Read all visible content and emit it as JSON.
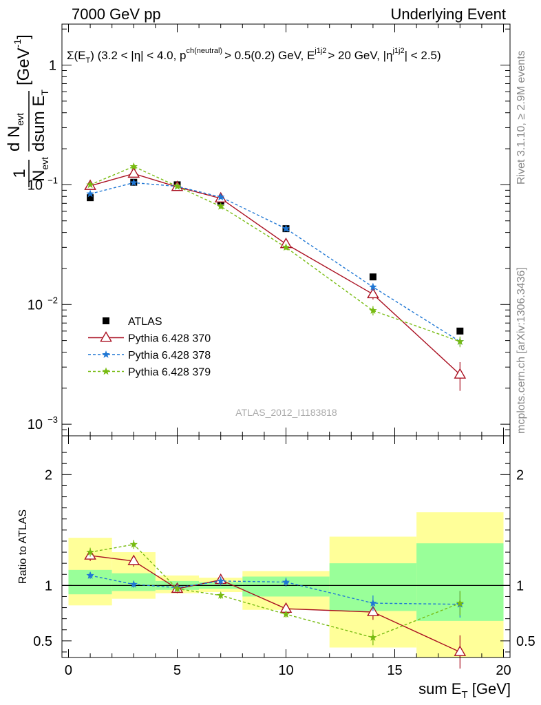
{
  "header": {
    "left": "7000 GeV pp",
    "right": "Underlying Event"
  },
  "side_labels": {
    "rivet": "Rivet 3.1.10, ≥ 2.9M events",
    "mcplots": "mcplots.cern.ch [arXiv:1306.3436]"
  },
  "chart_data": [
    {
      "type": "scatter",
      "panel": "main",
      "title": "Σ(E_T) (3.2 < |η| < 4.0, p^ch(neutral) > 0.5(0.2) GeV, E_T^j1j2 > 20 GeV, |η^j1j2| < 2.5)",
      "title_parts": {
        "sigma": "Σ(E",
        "sub_t": "T",
        "cut1": ") (3.2 < |η| < 4.0, p",
        "sup_ch": "ch(neutral)",
        "cut2": "> 0.5(0.2) GeV, E",
        "sup_j": "j1j2",
        "cut3": "> 20 GeV, |η",
        "sup_j2": "j1j2",
        "cut4": "| < 2.5)"
      },
      "ylabel": "1/N_evt dN_evt/dsum E_T [GeV^-1]",
      "ylabel_parts": {
        "one": "1",
        "n": "N",
        "evt": "evt",
        "d": "d N",
        "dsum": "dsum E",
        "t": "T",
        "unit": "[GeV",
        "exp": "-1",
        "close": "]"
      },
      "yscale": "log",
      "ylim": [
        0.0008,
        2.2
      ],
      "y_ticks": [
        {
          "value": 1,
          "label": "1"
        },
        {
          "value": 0.1,
          "label": "10^-1",
          "base": "10",
          "exp": "−1"
        },
        {
          "value": 0.01,
          "label": "10^-2",
          "base": "10",
          "exp": "−2"
        },
        {
          "value": 0.001,
          "label": "10^-3",
          "base": "10",
          "exp": "−3"
        }
      ],
      "xlim": [
        -0.3,
        20.3
      ],
      "watermark": "ATLAS_2012_I1183818",
      "legend_position": "bottom-left",
      "series": [
        {
          "name": "ATLAS",
          "style": "square",
          "color": "#000000",
          "x": [
            1,
            3,
            5,
            7,
            10,
            14,
            18
          ],
          "y": [
            0.078,
            0.105,
            0.1,
            0.073,
            0.043,
            0.017,
            0.006
          ]
        },
        {
          "name": "Pythia 6.428 370",
          "style": "triangle-line",
          "color": "#aa1122",
          "x": [
            1,
            3,
            5,
            7,
            10,
            14,
            18
          ],
          "y": [
            0.098,
            0.124,
            0.096,
            0.077,
            0.032,
            0.0122,
            0.0026
          ],
          "err": [
            0.003,
            0.004,
            0.003,
            0.003,
            0.0015,
            0.0012,
            0.0007
          ]
        },
        {
          "name": "Pythia 6.428 378",
          "style": "star-dash",
          "color": "#1f77d4",
          "x": [
            1,
            3,
            5,
            7,
            10,
            14,
            18
          ],
          "y": [
            0.084,
            0.104,
            0.097,
            0.079,
            0.043,
            0.014,
            0.0049
          ],
          "err": [
            0.002,
            0.003,
            0.003,
            0.003,
            0.002,
            0.001,
            0.0004
          ]
        },
        {
          "name": "Pythia 6.428 379",
          "style": "star-dash",
          "color": "#77bb11",
          "x": [
            1,
            3,
            5,
            7,
            10,
            14,
            18
          ],
          "y": [
            0.1,
            0.142,
            0.097,
            0.066,
            0.03,
            0.0089,
            0.0049
          ],
          "err": [
            0.003,
            0.005,
            0.003,
            0.003,
            0.0015,
            0.0008,
            0.0005
          ]
        }
      ]
    },
    {
      "type": "scatter",
      "panel": "ratio",
      "ylabel": "Ratio to ATLAS",
      "xlabel": "sum E_T [GeV]",
      "xlabel_parts": {
        "main": "sum E",
        "sub": "T",
        "unit": " [GeV]"
      },
      "ylim": [
        0.35,
        2.35
      ],
      "y_ticks": [
        0.5,
        1,
        2
      ],
      "xlim": [
        -0.3,
        20.3
      ],
      "x_ticks": [
        0,
        5,
        10,
        15,
        20
      ],
      "bands": [
        {
          "x0": 0,
          "x1": 2,
          "yellow": [
            0.82,
            1.43
          ],
          "green": [
            0.92,
            1.14
          ]
        },
        {
          "x0": 2,
          "x1": 4,
          "yellow": [
            0.88,
            1.3
          ],
          "green": [
            0.95,
            1.11
          ]
        },
        {
          "x0": 4,
          "x1": 6,
          "yellow": [
            0.93,
            1.09
          ],
          "green": [
            0.96,
            1.04
          ]
        },
        {
          "x0": 6,
          "x1": 8,
          "yellow": [
            0.94,
            1.07
          ],
          "green": [
            0.97,
            1.03
          ]
        },
        {
          "x0": 8,
          "x1": 12,
          "yellow": [
            0.78,
            1.13
          ],
          "green": [
            0.9,
            1.08
          ]
        },
        {
          "x0": 12,
          "x1": 16,
          "yellow": [
            0.44,
            1.44
          ],
          "green": [
            0.77,
            1.2
          ]
        },
        {
          "x0": 16,
          "x1": 20,
          "yellow": [
            0.35,
            1.66
          ],
          "green": [
            0.68,
            1.38
          ]
        }
      ],
      "series": [
        {
          "name": "Pythia 6.428 370",
          "color": "#aa1122",
          "x": [
            1,
            3,
            5,
            7,
            10,
            14,
            18
          ],
          "y": [
            1.27,
            1.22,
            0.97,
            1.05,
            0.79,
            0.76,
            0.4
          ],
          "err": [
            0.05,
            0.05,
            0.04,
            0.05,
            0.05,
            0.07,
            0.15
          ]
        },
        {
          "name": "Pythia 6.428 378",
          "color": "#1f77d4",
          "x": [
            1,
            3,
            5,
            7,
            10,
            14,
            18
          ],
          "y": [
            1.09,
            1.01,
            0.98,
            1.04,
            1.03,
            0.84,
            0.83
          ],
          "err": [
            0.03,
            0.03,
            0.03,
            0.04,
            0.04,
            0.07,
            0.12
          ]
        },
        {
          "name": "Pythia 6.428 379",
          "color": "#77bb11",
          "x": [
            1,
            3,
            5,
            7,
            10,
            14,
            18
          ],
          "y": [
            1.3,
            1.37,
            0.97,
            0.91,
            0.74,
            0.53,
            0.84
          ],
          "err": [
            0.04,
            0.04,
            0.03,
            0.03,
            0.03,
            0.07,
            0.11
          ]
        }
      ]
    }
  ]
}
